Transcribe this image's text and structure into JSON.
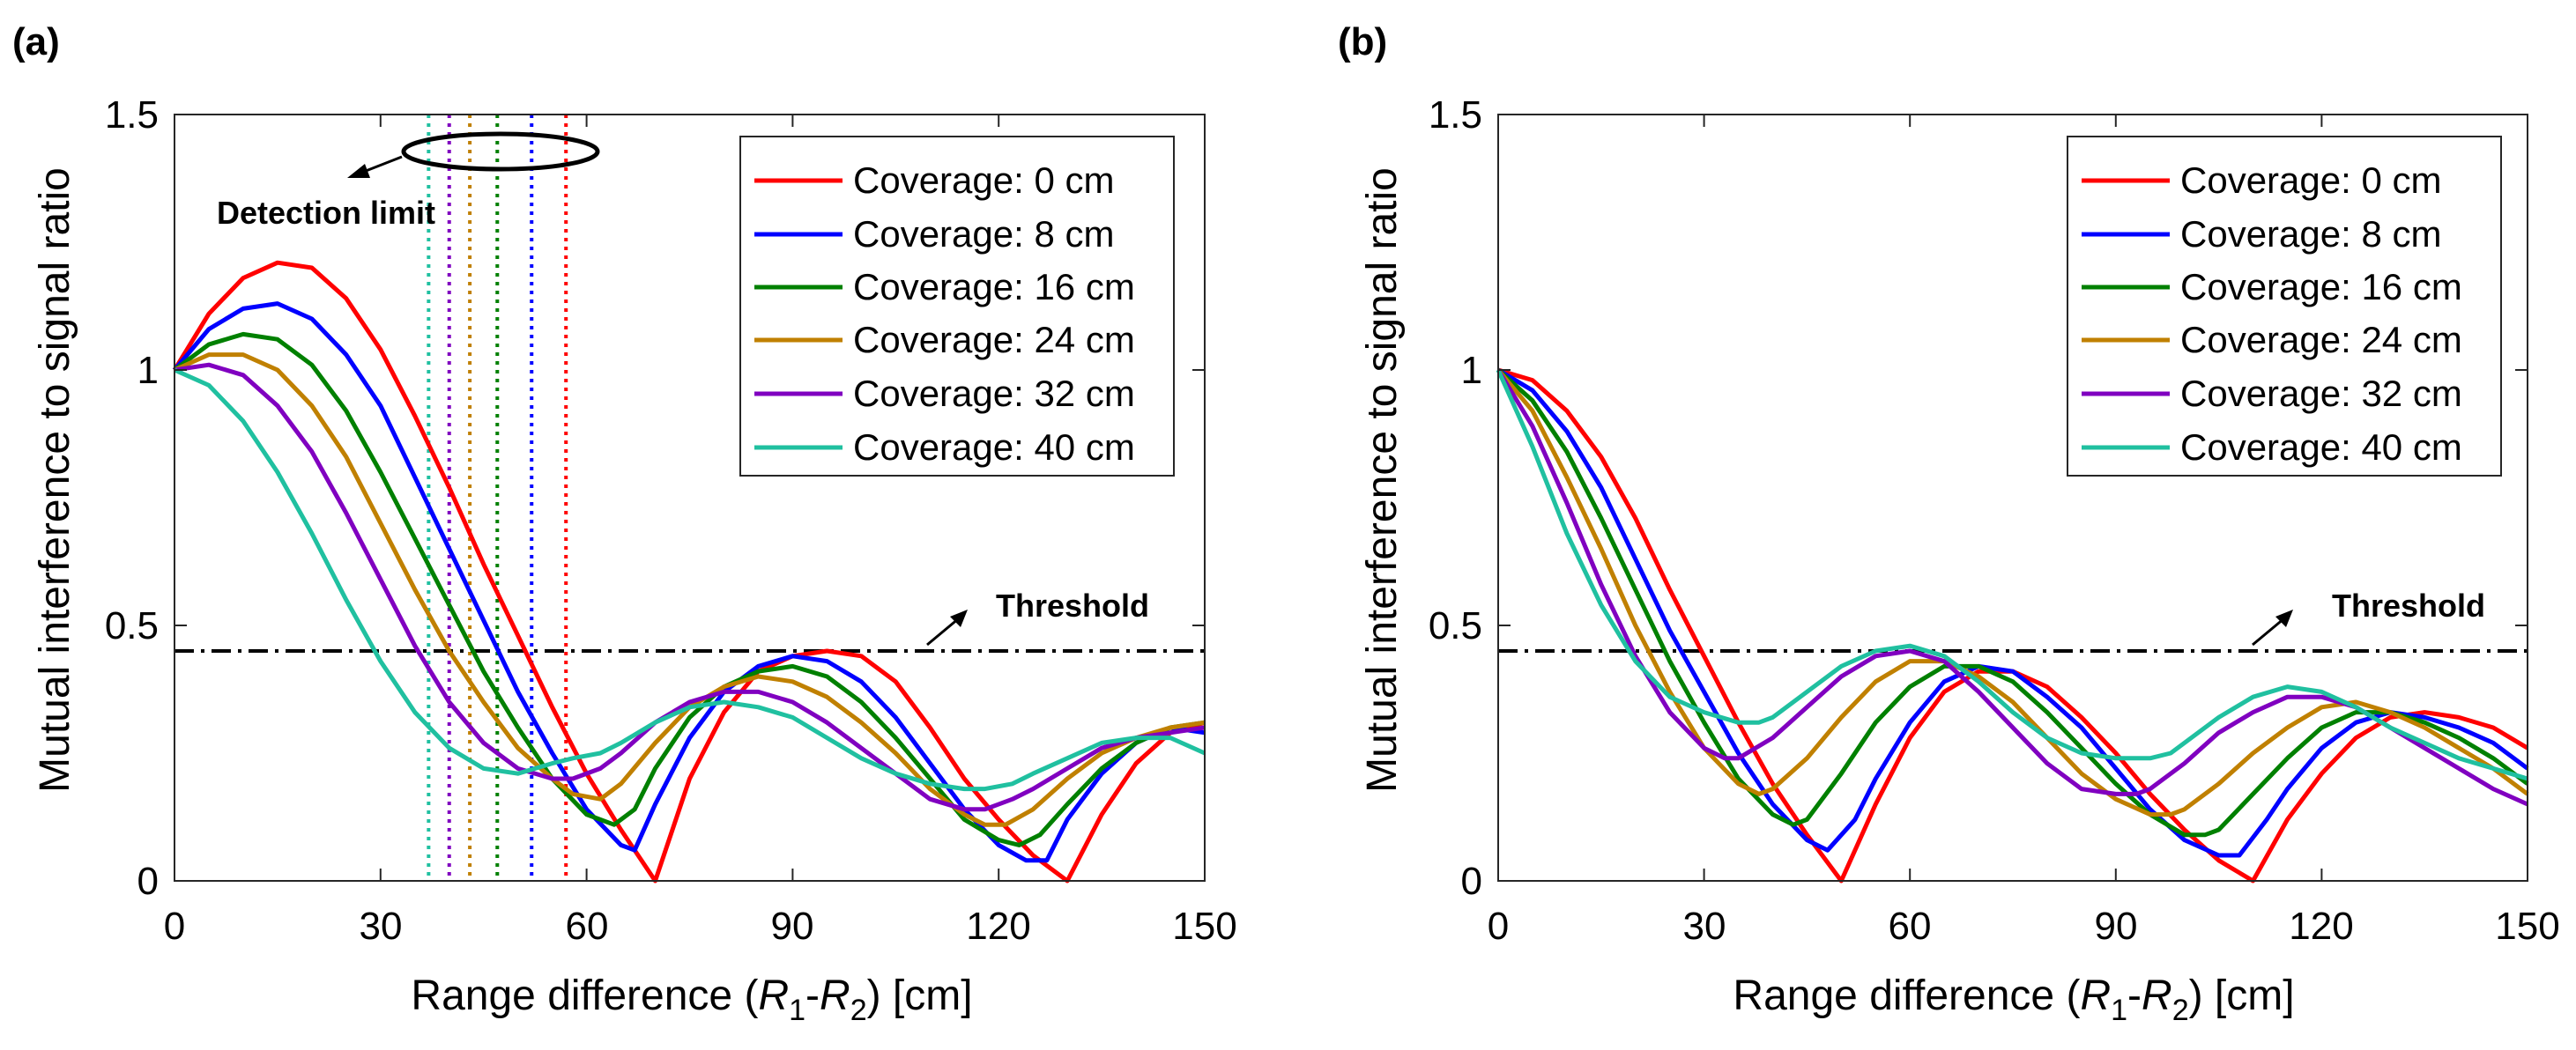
{
  "chart_data": [
    {
      "panel_label": "(a)",
      "type": "line",
      "xlabel_prefix": "Range difference (",
      "xlabel_r1": "R",
      "xlabel_sub1": "1",
      "xlabel_dash": "-",
      "xlabel_r2": "R",
      "xlabel_sub2": "2",
      "xlabel_suffix": ") [cm]",
      "ylabel": "Mutual interference to signal ratio",
      "xlim": [
        0,
        150
      ],
      "ylim": [
        0,
        1.5
      ],
      "xticks": [
        0,
        30,
        60,
        90,
        120,
        150
      ],
      "xtick_labels": [
        "0",
        "30",
        "60",
        "90",
        "120",
        "150"
      ],
      "yticks": [
        0,
        0.5,
        1,
        1.5
      ],
      "ytick_labels": [
        "0",
        "0.5",
        "1",
        "1.5"
      ],
      "legend_position": "top-right",
      "threshold": {
        "value": 0.45,
        "label": "Threshold",
        "style": "dash-dot"
      },
      "annotations": [
        {
          "text": "Detection limit",
          "points_to": "intersections with threshold"
        }
      ],
      "detection_limits": [
        {
          "series": "Coverage: 0 cm",
          "x": 57
        },
        {
          "series": "Coverage: 8 cm",
          "x": 52
        },
        {
          "series": "Coverage: 16 cm",
          "x": 47
        },
        {
          "series": "Coverage: 24 cm",
          "x": 43
        },
        {
          "series": "Coverage: 32 cm",
          "x": 40
        },
        {
          "series": "Coverage: 40 cm",
          "x": 37
        }
      ],
      "series": [
        {
          "name": "Coverage: 0 cm",
          "color": "#ff0000",
          "x": [
            0,
            5,
            10,
            15,
            20,
            25,
            30,
            35,
            40,
            45,
            50,
            55,
            60,
            65,
            70,
            75,
            80,
            85,
            90,
            95,
            100,
            105,
            110,
            115,
            120,
            125,
            130,
            135,
            140,
            145,
            150
          ],
          "y": [
            1.0,
            1.11,
            1.18,
            1.21,
            1.2,
            1.14,
            1.04,
            0.91,
            0.77,
            0.62,
            0.48,
            0.34,
            0.21,
            0.1,
            0.0,
            0.2,
            0.33,
            0.41,
            0.44,
            0.45,
            0.44,
            0.39,
            0.3,
            0.2,
            0.12,
            0.05,
            0.0,
            0.13,
            0.23,
            0.29,
            0.31
          ]
        },
        {
          "name": "Coverage: 8 cm",
          "color": "#0000ff",
          "x": [
            0,
            5,
            10,
            15,
            20,
            25,
            30,
            35,
            40,
            45,
            50,
            55,
            60,
            65,
            67,
            70,
            75,
            80,
            85,
            90,
            95,
            100,
            105,
            110,
            115,
            120,
            124,
            127,
            130,
            135,
            140,
            145,
            150
          ],
          "y": [
            1.0,
            1.08,
            1.12,
            1.13,
            1.1,
            1.03,
            0.93,
            0.79,
            0.65,
            0.51,
            0.37,
            0.25,
            0.14,
            0.07,
            0.06,
            0.15,
            0.28,
            0.37,
            0.42,
            0.44,
            0.43,
            0.39,
            0.32,
            0.23,
            0.14,
            0.07,
            0.04,
            0.04,
            0.12,
            0.21,
            0.27,
            0.3,
            0.29
          ]
        },
        {
          "name": "Coverage: 16 cm",
          "color": "#008000",
          "x": [
            0,
            5,
            10,
            15,
            20,
            25,
            30,
            35,
            40,
            45,
            50,
            55,
            60,
            64,
            67,
            70,
            75,
            80,
            85,
            90,
            95,
            100,
            105,
            110,
            115,
            120,
            123,
            126,
            130,
            135,
            140,
            145,
            150
          ],
          "y": [
            1.0,
            1.05,
            1.07,
            1.06,
            1.01,
            0.92,
            0.8,
            0.67,
            0.54,
            0.41,
            0.3,
            0.2,
            0.13,
            0.11,
            0.14,
            0.22,
            0.32,
            0.38,
            0.41,
            0.42,
            0.4,
            0.35,
            0.28,
            0.2,
            0.12,
            0.08,
            0.07,
            0.09,
            0.15,
            0.22,
            0.27,
            0.3,
            0.31
          ]
        },
        {
          "name": "Coverage: 24 cm",
          "color": "#c08000",
          "x": [
            0,
            5,
            10,
            15,
            20,
            25,
            30,
            35,
            40,
            45,
            50,
            55,
            58,
            62,
            65,
            70,
            75,
            80,
            85,
            90,
            95,
            100,
            105,
            110,
            115,
            118,
            121,
            125,
            130,
            135,
            140,
            145,
            150
          ],
          "y": [
            1.0,
            1.03,
            1.03,
            1.0,
            0.93,
            0.83,
            0.7,
            0.57,
            0.45,
            0.35,
            0.26,
            0.2,
            0.17,
            0.16,
            0.19,
            0.27,
            0.34,
            0.38,
            0.4,
            0.39,
            0.36,
            0.31,
            0.25,
            0.18,
            0.13,
            0.11,
            0.11,
            0.14,
            0.2,
            0.25,
            0.28,
            0.3,
            0.31
          ]
        },
        {
          "name": "Coverage: 32 cm",
          "color": "#8000c0",
          "x": [
            0,
            5,
            10,
            15,
            20,
            25,
            30,
            35,
            40,
            45,
            50,
            55,
            58,
            62,
            65,
            70,
            75,
            80,
            85,
            90,
            95,
            100,
            105,
            110,
            115,
            118,
            122,
            125,
            130,
            135,
            140,
            145,
            150
          ],
          "y": [
            1.0,
            1.01,
            0.99,
            0.93,
            0.84,
            0.72,
            0.59,
            0.46,
            0.35,
            0.27,
            0.22,
            0.2,
            0.2,
            0.22,
            0.25,
            0.31,
            0.35,
            0.37,
            0.37,
            0.35,
            0.31,
            0.26,
            0.21,
            0.16,
            0.14,
            0.14,
            0.16,
            0.18,
            0.22,
            0.26,
            0.28,
            0.29,
            0.3
          ]
        },
        {
          "name": "Coverage: 40 cm",
          "color": "#20c0a0",
          "x": [
            0,
            5,
            10,
            15,
            20,
            25,
            30,
            35,
            40,
            45,
            50,
            55,
            58,
            62,
            65,
            70,
            75,
            80,
            85,
            90,
            95,
            100,
            105,
            110,
            115,
            118,
            122,
            125,
            130,
            135,
            140,
            145,
            150
          ],
          "y": [
            1.0,
            0.97,
            0.9,
            0.8,
            0.68,
            0.55,
            0.43,
            0.33,
            0.26,
            0.22,
            0.21,
            0.23,
            0.24,
            0.25,
            0.27,
            0.31,
            0.34,
            0.35,
            0.34,
            0.32,
            0.28,
            0.24,
            0.21,
            0.19,
            0.18,
            0.18,
            0.19,
            0.21,
            0.24,
            0.27,
            0.28,
            0.28,
            0.25
          ]
        }
      ]
    },
    {
      "panel_label": "(b)",
      "type": "line",
      "xlabel_prefix": "Range difference (",
      "xlabel_r1": "R",
      "xlabel_sub1": "1",
      "xlabel_dash": "-",
      "xlabel_r2": "R",
      "xlabel_sub2": "2",
      "xlabel_suffix": ") [cm]",
      "ylabel": "Mutual interference to signal ratio",
      "xlim": [
        0,
        150
      ],
      "ylim": [
        0,
        1.5
      ],
      "xticks": [
        0,
        30,
        60,
        90,
        120,
        150
      ],
      "xtick_labels": [
        "0",
        "30",
        "60",
        "90",
        "120",
        "150"
      ],
      "yticks": [
        0,
        0.5,
        1,
        1.5
      ],
      "ytick_labels": [
        "0",
        "0.5",
        "1",
        "1.5"
      ],
      "legend_position": "top-right",
      "threshold": {
        "value": 0.45,
        "label": "Threshold",
        "style": "dash-dot"
      },
      "annotations": [],
      "detection_limits": [],
      "series": [
        {
          "name": "Coverage: 0 cm",
          "color": "#ff0000",
          "x": [
            0,
            5,
            10,
            15,
            20,
            25,
            30,
            35,
            40,
            45,
            50,
            55,
            60,
            65,
            70,
            75,
            80,
            85,
            90,
            95,
            100,
            105,
            110,
            115,
            120,
            125,
            130,
            135,
            140,
            145,
            150
          ],
          "y": [
            1.0,
            0.98,
            0.92,
            0.83,
            0.71,
            0.57,
            0.44,
            0.31,
            0.19,
            0.09,
            0.0,
            0.15,
            0.28,
            0.37,
            0.41,
            0.41,
            0.38,
            0.32,
            0.25,
            0.17,
            0.1,
            0.04,
            0.0,
            0.12,
            0.21,
            0.28,
            0.32,
            0.33,
            0.32,
            0.3,
            0.26
          ]
        },
        {
          "name": "Coverage: 8 cm",
          "color": "#0000ff",
          "x": [
            0,
            5,
            10,
            15,
            20,
            25,
            30,
            35,
            40,
            45,
            48,
            52,
            55,
            60,
            65,
            70,
            75,
            80,
            85,
            90,
            95,
            100,
            105,
            108,
            112,
            115,
            120,
            125,
            130,
            135,
            140,
            145,
            150
          ],
          "y": [
            1.0,
            0.96,
            0.88,
            0.77,
            0.63,
            0.49,
            0.37,
            0.25,
            0.15,
            0.08,
            0.06,
            0.12,
            0.2,
            0.31,
            0.39,
            0.42,
            0.41,
            0.36,
            0.3,
            0.22,
            0.14,
            0.08,
            0.05,
            0.05,
            0.12,
            0.18,
            0.26,
            0.31,
            0.33,
            0.32,
            0.3,
            0.27,
            0.22
          ]
        },
        {
          "name": "Coverage: 16 cm",
          "color": "#008000",
          "x": [
            0,
            5,
            10,
            15,
            20,
            25,
            30,
            35,
            40,
            43,
            45,
            50,
            55,
            60,
            65,
            70,
            75,
            80,
            85,
            90,
            95,
            100,
            103,
            105,
            110,
            115,
            120,
            125,
            130,
            135,
            140,
            145,
            150
          ],
          "y": [
            1.0,
            0.94,
            0.84,
            0.71,
            0.57,
            0.43,
            0.31,
            0.2,
            0.13,
            0.11,
            0.12,
            0.21,
            0.31,
            0.38,
            0.42,
            0.42,
            0.39,
            0.33,
            0.26,
            0.19,
            0.13,
            0.09,
            0.09,
            0.1,
            0.17,
            0.24,
            0.3,
            0.33,
            0.33,
            0.31,
            0.28,
            0.24,
            0.19
          ]
        },
        {
          "name": "Coverage: 24 cm",
          "color": "#c08000",
          "x": [
            0,
            5,
            10,
            15,
            20,
            25,
            30,
            35,
            38,
            40,
            45,
            50,
            55,
            60,
            65,
            70,
            75,
            80,
            85,
            90,
            95,
            98,
            100,
            105,
            110,
            115,
            120,
            125,
            130,
            135,
            140,
            145,
            150
          ],
          "y": [
            1.0,
            0.92,
            0.79,
            0.65,
            0.5,
            0.37,
            0.26,
            0.19,
            0.17,
            0.18,
            0.24,
            0.32,
            0.39,
            0.43,
            0.43,
            0.4,
            0.35,
            0.28,
            0.21,
            0.16,
            0.13,
            0.13,
            0.14,
            0.19,
            0.25,
            0.3,
            0.34,
            0.35,
            0.33,
            0.3,
            0.26,
            0.22,
            0.17
          ]
        },
        {
          "name": "Coverage: 32 cm",
          "color": "#8000c0",
          "x": [
            0,
            5,
            10,
            15,
            20,
            25,
            30,
            33,
            35,
            40,
            45,
            50,
            55,
            60,
            65,
            70,
            75,
            80,
            85,
            90,
            93,
            95,
            100,
            105,
            110,
            115,
            120,
            125,
            130,
            135,
            140,
            145,
            150
          ],
          "y": [
            1.0,
            0.89,
            0.74,
            0.58,
            0.44,
            0.33,
            0.26,
            0.24,
            0.24,
            0.28,
            0.34,
            0.4,
            0.44,
            0.45,
            0.43,
            0.37,
            0.3,
            0.23,
            0.18,
            0.17,
            0.17,
            0.18,
            0.23,
            0.29,
            0.33,
            0.36,
            0.36,
            0.34,
            0.3,
            0.26,
            0.22,
            0.18,
            0.15
          ]
        },
        {
          "name": "Coverage: 40 cm",
          "color": "#20c0a0",
          "x": [
            0,
            5,
            10,
            15,
            20,
            25,
            30,
            35,
            38,
            40,
            45,
            50,
            55,
            60,
            65,
            70,
            75,
            80,
            85,
            90,
            95,
            98,
            100,
            105,
            110,
            115,
            120,
            125,
            130,
            135,
            140,
            145,
            150
          ],
          "y": [
            1.0,
            0.85,
            0.68,
            0.54,
            0.43,
            0.36,
            0.33,
            0.31,
            0.31,
            0.32,
            0.37,
            0.42,
            0.45,
            0.46,
            0.44,
            0.39,
            0.33,
            0.28,
            0.25,
            0.24,
            0.24,
            0.25,
            0.27,
            0.32,
            0.36,
            0.38,
            0.37,
            0.34,
            0.3,
            0.27,
            0.24,
            0.22,
            0.2
          ]
        }
      ]
    }
  ]
}
